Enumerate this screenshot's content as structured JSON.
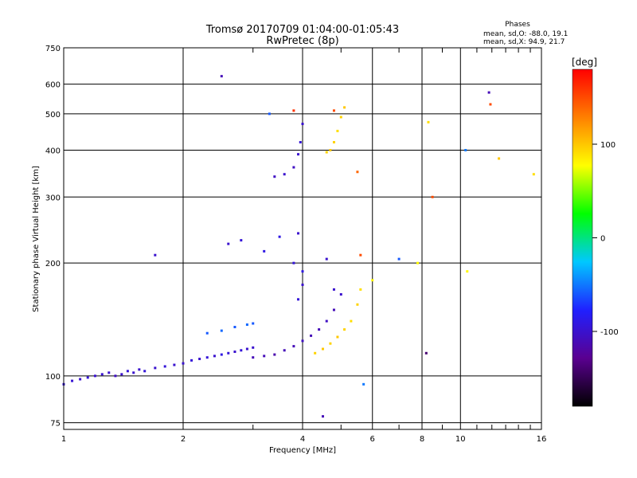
{
  "chart_data": {
    "type": "scatter",
    "title": "Tromsø 20170709 01:04:00-01:05:43",
    "subtitle": "RwPretec (8p)",
    "xlabel": "Frequency [MHz]",
    "ylabel": "Stationary phase Virtual Height [km]",
    "xscale": "log",
    "yscale": "log",
    "xlim": [
      1,
      16
    ],
    "ylim": [
      72,
      750
    ],
    "xticks": [
      1,
      2,
      4,
      6,
      8,
      10,
      16
    ],
    "xtick_labels": [
      "1",
      "2",
      "4",
      "6",
      "8",
      "10",
      "16"
    ],
    "xminor": [
      3,
      5,
      7,
      9,
      11,
      12,
      13,
      14,
      15
    ],
    "yticks": [
      75,
      100,
      200,
      300,
      400,
      500,
      600,
      750
    ],
    "ytick_labels": [
      "75",
      "100",
      "200",
      "300",
      "400",
      "500",
      "600",
      "750"
    ],
    "grid": true,
    "colorbar": {
      "label": "[deg]",
      "range": [
        -180,
        180
      ],
      "ticks": [
        100,
        0,
        -100
      ],
      "tick_labels": [
        "100",
        "0",
        "-100"
      ],
      "colors": [
        "#000000",
        "#5a0090",
        "#2020ff",
        "#00c8ff",
        "#00ff00",
        "#ffff00",
        "#ff8000",
        "#ff0000"
      ]
    },
    "legend_text": {
      "title": "Phases",
      "line_o": "mean, sd,O: -88.0, 19.1",
      "line_x": "mean, sd,X:  94.9, 21.7"
    },
    "clusters": [
      {
        "name": "low-band-blue",
        "points": [
          [
            1.0,
            95,
            -95
          ],
          [
            1.05,
            97,
            -97
          ],
          [
            1.1,
            98,
            -100
          ],
          [
            1.15,
            99,
            -95
          ],
          [
            1.2,
            100,
            -100
          ],
          [
            1.25,
            101,
            -98
          ],
          [
            1.3,
            102,
            -100
          ],
          [
            1.35,
            100,
            -105
          ],
          [
            1.4,
            101,
            -100
          ],
          [
            1.45,
            103,
            -95
          ],
          [
            1.5,
            102,
            -100
          ],
          [
            1.55,
            104,
            -100
          ],
          [
            1.6,
            103,
            -95
          ],
          [
            1.7,
            105,
            -100
          ],
          [
            1.8,
            106,
            -95
          ],
          [
            1.9,
            107,
            -100
          ],
          [
            2.0,
            108,
            -100
          ],
          [
            2.1,
            110,
            -95
          ],
          [
            2.2,
            111,
            -100
          ],
          [
            2.3,
            112,
            -95
          ],
          [
            2.4,
            113,
            -100
          ],
          [
            2.5,
            114,
            -90
          ],
          [
            2.6,
            115,
            -95
          ],
          [
            2.7,
            116,
            -100
          ],
          [
            2.8,
            117,
            -95
          ],
          [
            2.9,
            118,
            -100
          ],
          [
            3.0,
            119,
            -100
          ]
        ]
      },
      {
        "name": "o-trace",
        "points": [
          [
            3.0,
            112,
            -110
          ],
          [
            3.2,
            113,
            -110
          ],
          [
            3.4,
            114,
            -115
          ],
          [
            3.6,
            117,
            -110
          ],
          [
            3.8,
            120,
            -110
          ],
          [
            4.0,
            124,
            -105
          ],
          [
            4.2,
            128,
            -110
          ],
          [
            4.4,
            133,
            -110
          ],
          [
            4.6,
            140,
            -105
          ],
          [
            4.8,
            150,
            -110
          ],
          [
            5.0,
            165,
            -100
          ]
        ]
      },
      {
        "name": "o-trace-f",
        "points": [
          [
            3.4,
            340,
            -105
          ],
          [
            3.6,
            345,
            -100
          ],
          [
            3.8,
            360,
            -105
          ],
          [
            3.9,
            390,
            -100
          ],
          [
            3.95,
            420,
            -95
          ],
          [
            4.0,
            470,
            -100
          ]
        ]
      },
      {
        "name": "x-trace",
        "points": [
          [
            4.3,
            115,
            95
          ],
          [
            4.5,
            118,
            100
          ],
          [
            4.7,
            122,
            95
          ],
          [
            4.9,
            127,
            100
          ],
          [
            5.1,
            133,
            95
          ],
          [
            5.3,
            140,
            90
          ],
          [
            5.5,
            155,
            95
          ],
          [
            5.6,
            170,
            90
          ]
        ]
      },
      {
        "name": "x-trace-f",
        "points": [
          [
            4.6,
            395,
            95
          ],
          [
            4.7,
            400,
            100
          ],
          [
            4.8,
            420,
            95
          ],
          [
            4.9,
            450,
            90
          ],
          [
            5.0,
            490,
            95
          ],
          [
            5.1,
            520,
            100
          ]
        ]
      },
      {
        "name": "cyan-band",
        "points": [
          [
            2.3,
            130,
            -60
          ],
          [
            2.5,
            132,
            -55
          ],
          [
            2.7,
            135,
            -60
          ],
          [
            2.9,
            137,
            -55
          ],
          [
            3.0,
            138,
            -60
          ]
        ]
      },
      {
        "name": "scatter",
        "points": [
          [
            2.5,
            630,
            -110
          ],
          [
            1.7,
            210,
            -100
          ],
          [
            2.6,
            225,
            -100
          ],
          [
            2.8,
            230,
            -95
          ],
          [
            3.2,
            215,
            -90
          ],
          [
            3.5,
            235,
            -90
          ],
          [
            3.9,
            240,
            -100
          ],
          [
            3.8,
            200,
            -95
          ],
          [
            4.0,
            190,
            -90
          ],
          [
            4.0,
            175,
            -100
          ],
          [
            3.9,
            160,
            -95
          ],
          [
            4.6,
            205,
            -100
          ],
          [
            4.8,
            170,
            -100
          ],
          [
            5.6,
            210,
            150
          ],
          [
            6.0,
            180,
            80
          ],
          [
            7.0,
            205,
            -60
          ],
          [
            7.8,
            200,
            80
          ],
          [
            8.2,
            115,
            -140
          ],
          [
            8.3,
            475,
            90
          ],
          [
            8.5,
            300,
            150
          ],
          [
            10.3,
            400,
            -50
          ],
          [
            10.4,
            190,
            80
          ],
          [
            11.8,
            570,
            -110
          ],
          [
            11.9,
            530,
            150
          ],
          [
            12.5,
            380,
            100
          ],
          [
            15.3,
            345,
            90
          ],
          [
            4.5,
            78,
            -110
          ],
          [
            5.7,
            95,
            -50
          ],
          [
            4.8,
            510,
            150
          ],
          [
            3.8,
            510,
            160
          ],
          [
            5.5,
            350,
            140
          ],
          [
            3.3,
            500,
            -60
          ]
        ]
      }
    ]
  }
}
